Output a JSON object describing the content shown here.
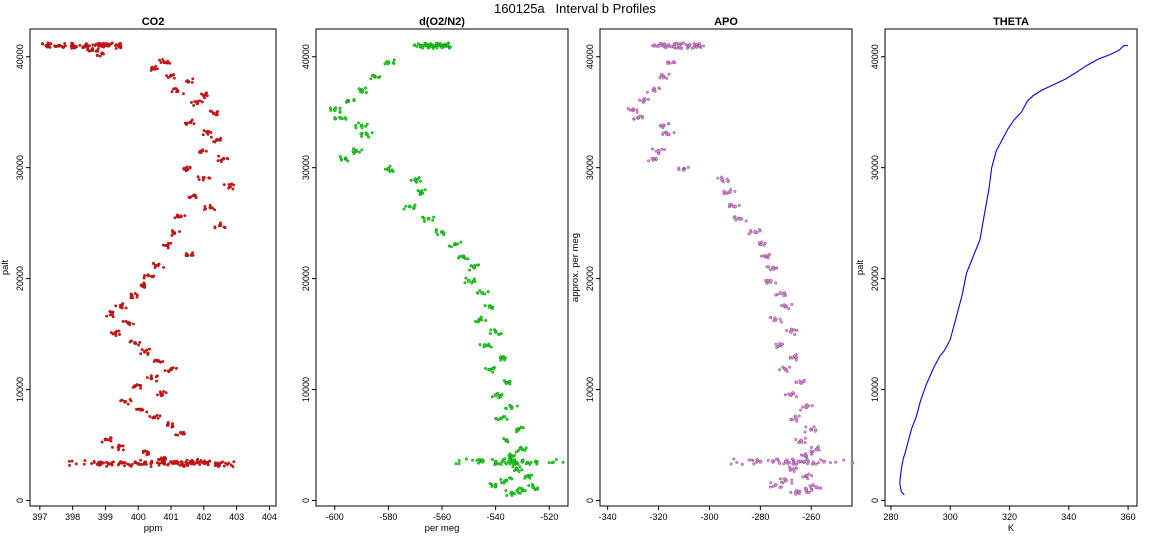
{
  "figure_title": "160125a   Interval b Profiles",
  "chart_data": [
    {
      "type": "scatter",
      "title": "CO2",
      "xlabel": "ppm",
      "ylabel": "palt",
      "xlim": [
        396.7,
        404.2
      ],
      "ylim": [
        -500,
        42500
      ],
      "xticks": [
        397,
        398,
        399,
        400,
        401,
        402,
        403,
        404
      ],
      "yticks": [
        0,
        10000,
        20000,
        30000,
        40000
      ],
      "grid": false,
      "color": "#ff0000",
      "series": [
        {
          "x": [
            397.2,
            397.6,
            398.0,
            398.4,
            398.8,
            399.1,
            399.4,
            398.6,
            398.9,
            400.8,
            400.5,
            401.0,
            401.5,
            401.2,
            402.0,
            401.8,
            402.3,
            401.6,
            402.1,
            402.4,
            401.9,
            402.6,
            401.4,
            402.0,
            402.8,
            401.7,
            402.2,
            401.3,
            402.5,
            401.1,
            400.9,
            401.5,
            400.6,
            400.3,
            400.1,
            399.8,
            399.5,
            399.2,
            399.7,
            399.3,
            399.9,
            400.2,
            400.6,
            401.0,
            400.4,
            399.9,
            400.7,
            399.6,
            400.1,
            400.5,
            400.9,
            401.3,
            399.0,
            399.4,
            400.3,
            400.8,
            401.6,
            402.0,
            402.4,
            398.8,
            399.1,
            399.5,
            400.0,
            400.4,
            400.8,
            401.2,
            401.7,
            402.1
          ],
          "y": [
            41000,
            41000,
            41000,
            41000,
            41000,
            41000,
            41000,
            40600,
            40300,
            39500,
            38900,
            38300,
            37800,
            36900,
            36500,
            35800,
            34900,
            34100,
            33200,
            32500,
            31400,
            30800,
            29900,
            29100,
            28300,
            27500,
            26400,
            25600,
            24800,
            24100,
            23000,
            22100,
            21200,
            20300,
            19400,
            18500,
            17600,
            16800,
            16000,
            15100,
            14200,
            13400,
            12600,
            11800,
            11000,
            10300,
            9600,
            8900,
            8200,
            7500,
            6800,
            6100,
            5500,
            4800,
            4300,
            3800,
            3500,
            3400,
            3300,
            3400,
            3300,
            3400,
            3300,
            3400,
            3300,
            3400,
            3300,
            3400
          ]
        }
      ]
    },
    {
      "type": "scatter",
      "title": "d(O2/N2)",
      "xlabel": "per meg",
      "ylabel": "",
      "xlim": [
        -607,
        -513
      ],
      "ylim": [
        -500,
        42500
      ],
      "xticks": [
        -600,
        -580,
        -560,
        -540,
        -520
      ],
      "yticks": [
        0,
        10000,
        20000,
        30000,
        40000
      ],
      "grid": false,
      "color": "#00ee00",
      "series": [
        {
          "x": [
            -568,
            -565,
            -562,
            -560,
            -558,
            -580,
            -585,
            -590,
            -595,
            -600,
            -598,
            -590,
            -588,
            -592,
            -596,
            -580,
            -570,
            -568,
            -572,
            -565,
            -560,
            -555,
            -552,
            -548,
            -550,
            -545,
            -542,
            -546,
            -540,
            -544,
            -538,
            -542,
            -536,
            -540,
            -534,
            -538,
            -532,
            -536,
            -530,
            -534,
            -540,
            -530,
            -525,
            -535,
            -545,
            -532,
            -528,
            -536,
            -540,
            -526,
            -530,
            -534
          ],
          "y": [
            41000,
            41000,
            41000,
            41000,
            41000,
            39500,
            38200,
            37000,
            36000,
            35200,
            34500,
            33800,
            33000,
            31500,
            30800,
            29900,
            28900,
            27800,
            26500,
            25400,
            24200,
            23100,
            22000,
            21000,
            19800,
            18700,
            17500,
            16300,
            15200,
            14000,
            12900,
            11800,
            10600,
            9500,
            8400,
            7400,
            6400,
            5400,
            4600,
            4000,
            3500,
            3500,
            3500,
            3500,
            3500,
            2800,
            2200,
            1800,
            1400,
            1200,
            900,
            700
          ]
        }
      ]
    },
    {
      "type": "scatter",
      "title": "APO",
      "xlabel": "",
      "ylabel": "approx. per meg",
      "xlim": [
        -343,
        -244
      ],
      "ylim": [
        -500,
        42500
      ],
      "xticks": [
        -340,
        -320,
        -300,
        -280,
        -260
      ],
      "yticks": [
        0,
        10000,
        20000,
        30000,
        40000
      ],
      "grid": false,
      "color": "#ee82ee",
      "series": [
        {
          "x": [
            -320,
            -316,
            -312,
            -308,
            -304,
            -314,
            -318,
            -322,
            -326,
            -330,
            -328,
            -318,
            -316,
            -320,
            -322,
            -310,
            -295,
            -292,
            -290,
            -288,
            -282,
            -280,
            -278,
            -275,
            -276,
            -272,
            -270,
            -274,
            -268,
            -272,
            -266,
            -270,
            -264,
            -268,
            -262,
            -266,
            -260,
            -264,
            -258,
            -262,
            -270,
            -265,
            -255,
            -275,
            -280,
            -268,
            -262,
            -270,
            -274,
            -258,
            -262,
            -266
          ],
          "y": [
            41000,
            41000,
            41000,
            41000,
            41000,
            39500,
            38200,
            37000,
            36000,
            35200,
            34500,
            33800,
            33000,
            31500,
            30800,
            29900,
            28900,
            27800,
            26500,
            25400,
            24200,
            23100,
            22000,
            21000,
            19800,
            18700,
            17500,
            16300,
            15200,
            14000,
            12900,
            11800,
            10600,
            9500,
            8400,
            7400,
            6400,
            5400,
            4600,
            4000,
            3500,
            3500,
            3500,
            3500,
            3500,
            2800,
            2200,
            1800,
            1400,
            1200,
            900,
            700
          ]
        }
      ]
    },
    {
      "type": "line",
      "title": "THETA",
      "xlabel": "K",
      "ylabel": "palt",
      "xlim": [
        278,
        363
      ],
      "ylim": [
        -500,
        42500
      ],
      "xticks": [
        280,
        300,
        320,
        340,
        360
      ],
      "yticks": [
        0,
        10000,
        20000,
        30000,
        40000
      ],
      "grid": false,
      "color": "#0000ff",
      "series": [
        {
          "x": [
            284.5,
            283.5,
            283.0,
            283.2,
            283.6,
            284.2,
            285.0,
            286.0,
            287.0,
            288.5,
            290.0,
            292.0,
            294.5,
            296.5,
            298.0,
            300.0,
            302.0,
            304.0,
            305.5,
            307.0,
            308.5,
            310.0,
            311.0,
            312.0,
            313.0,
            314.0,
            315.5,
            317.5,
            319.5,
            321.5,
            324.0,
            326.0,
            328.0,
            331.0,
            335.0,
            339.0,
            342.0,
            346.0,
            350.0,
            354.0,
            357.0,
            358.5,
            360.0
          ],
          "y": [
            500,
            800,
            1500,
            2200,
            3000,
            3800,
            4500,
            5500,
            6500,
            7500,
            9000,
            10500,
            12000,
            13000,
            13500,
            14500,
            16500,
            18500,
            20500,
            21500,
            22500,
            23500,
            25000,
            26500,
            28000,
            30000,
            31500,
            32500,
            33500,
            34300,
            35000,
            36000,
            36500,
            37000,
            37500,
            38000,
            38500,
            39200,
            39800,
            40200,
            40600,
            41000,
            41000
          ]
        }
      ]
    }
  ]
}
